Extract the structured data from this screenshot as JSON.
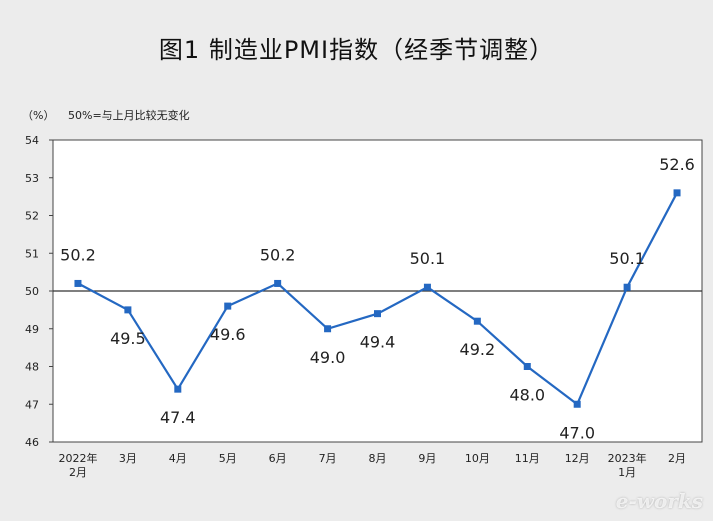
{
  "chart_data": {
    "type": "line",
    "title": "图1  制造业PMI指数（经季节调整）",
    "unit_label": "（%）",
    "note": "50%=与上月比较无变化",
    "categories": [
      [
        "2022年",
        "2月"
      ],
      [
        "3月"
      ],
      [
        "4月"
      ],
      [
        "5月"
      ],
      [
        "6月"
      ],
      [
        "7月"
      ],
      [
        "8月"
      ],
      [
        "9月"
      ],
      [
        "10月"
      ],
      [
        "11月"
      ],
      [
        "12月"
      ],
      [
        "2023年",
        "1月"
      ],
      [
        "2月"
      ]
    ],
    "values": [
      50.2,
      49.5,
      47.4,
      49.6,
      50.2,
      49.0,
      49.4,
      50.1,
      49.2,
      48.0,
      47.0,
      50.1,
      52.6
    ],
    "value_labels": [
      "50.2",
      "49.5",
      "47.4",
      "49.6",
      "50.2",
      "49.0",
      "49.4",
      "50.1",
      "49.2",
      "48.0",
      "47.0",
      "50.1",
      "52.6"
    ],
    "label_position": [
      "above",
      "below",
      "below",
      "below",
      "above",
      "below",
      "below",
      "above",
      "below",
      "below",
      "below",
      "above",
      "above"
    ],
    "ylim": [
      46,
      54
    ],
    "yticks": [
      46,
      47,
      48,
      49,
      50,
      51,
      52,
      53,
      54
    ],
    "reference_line": 50,
    "line_color": "#2468c2",
    "grid": false
  },
  "watermark": "e-works"
}
